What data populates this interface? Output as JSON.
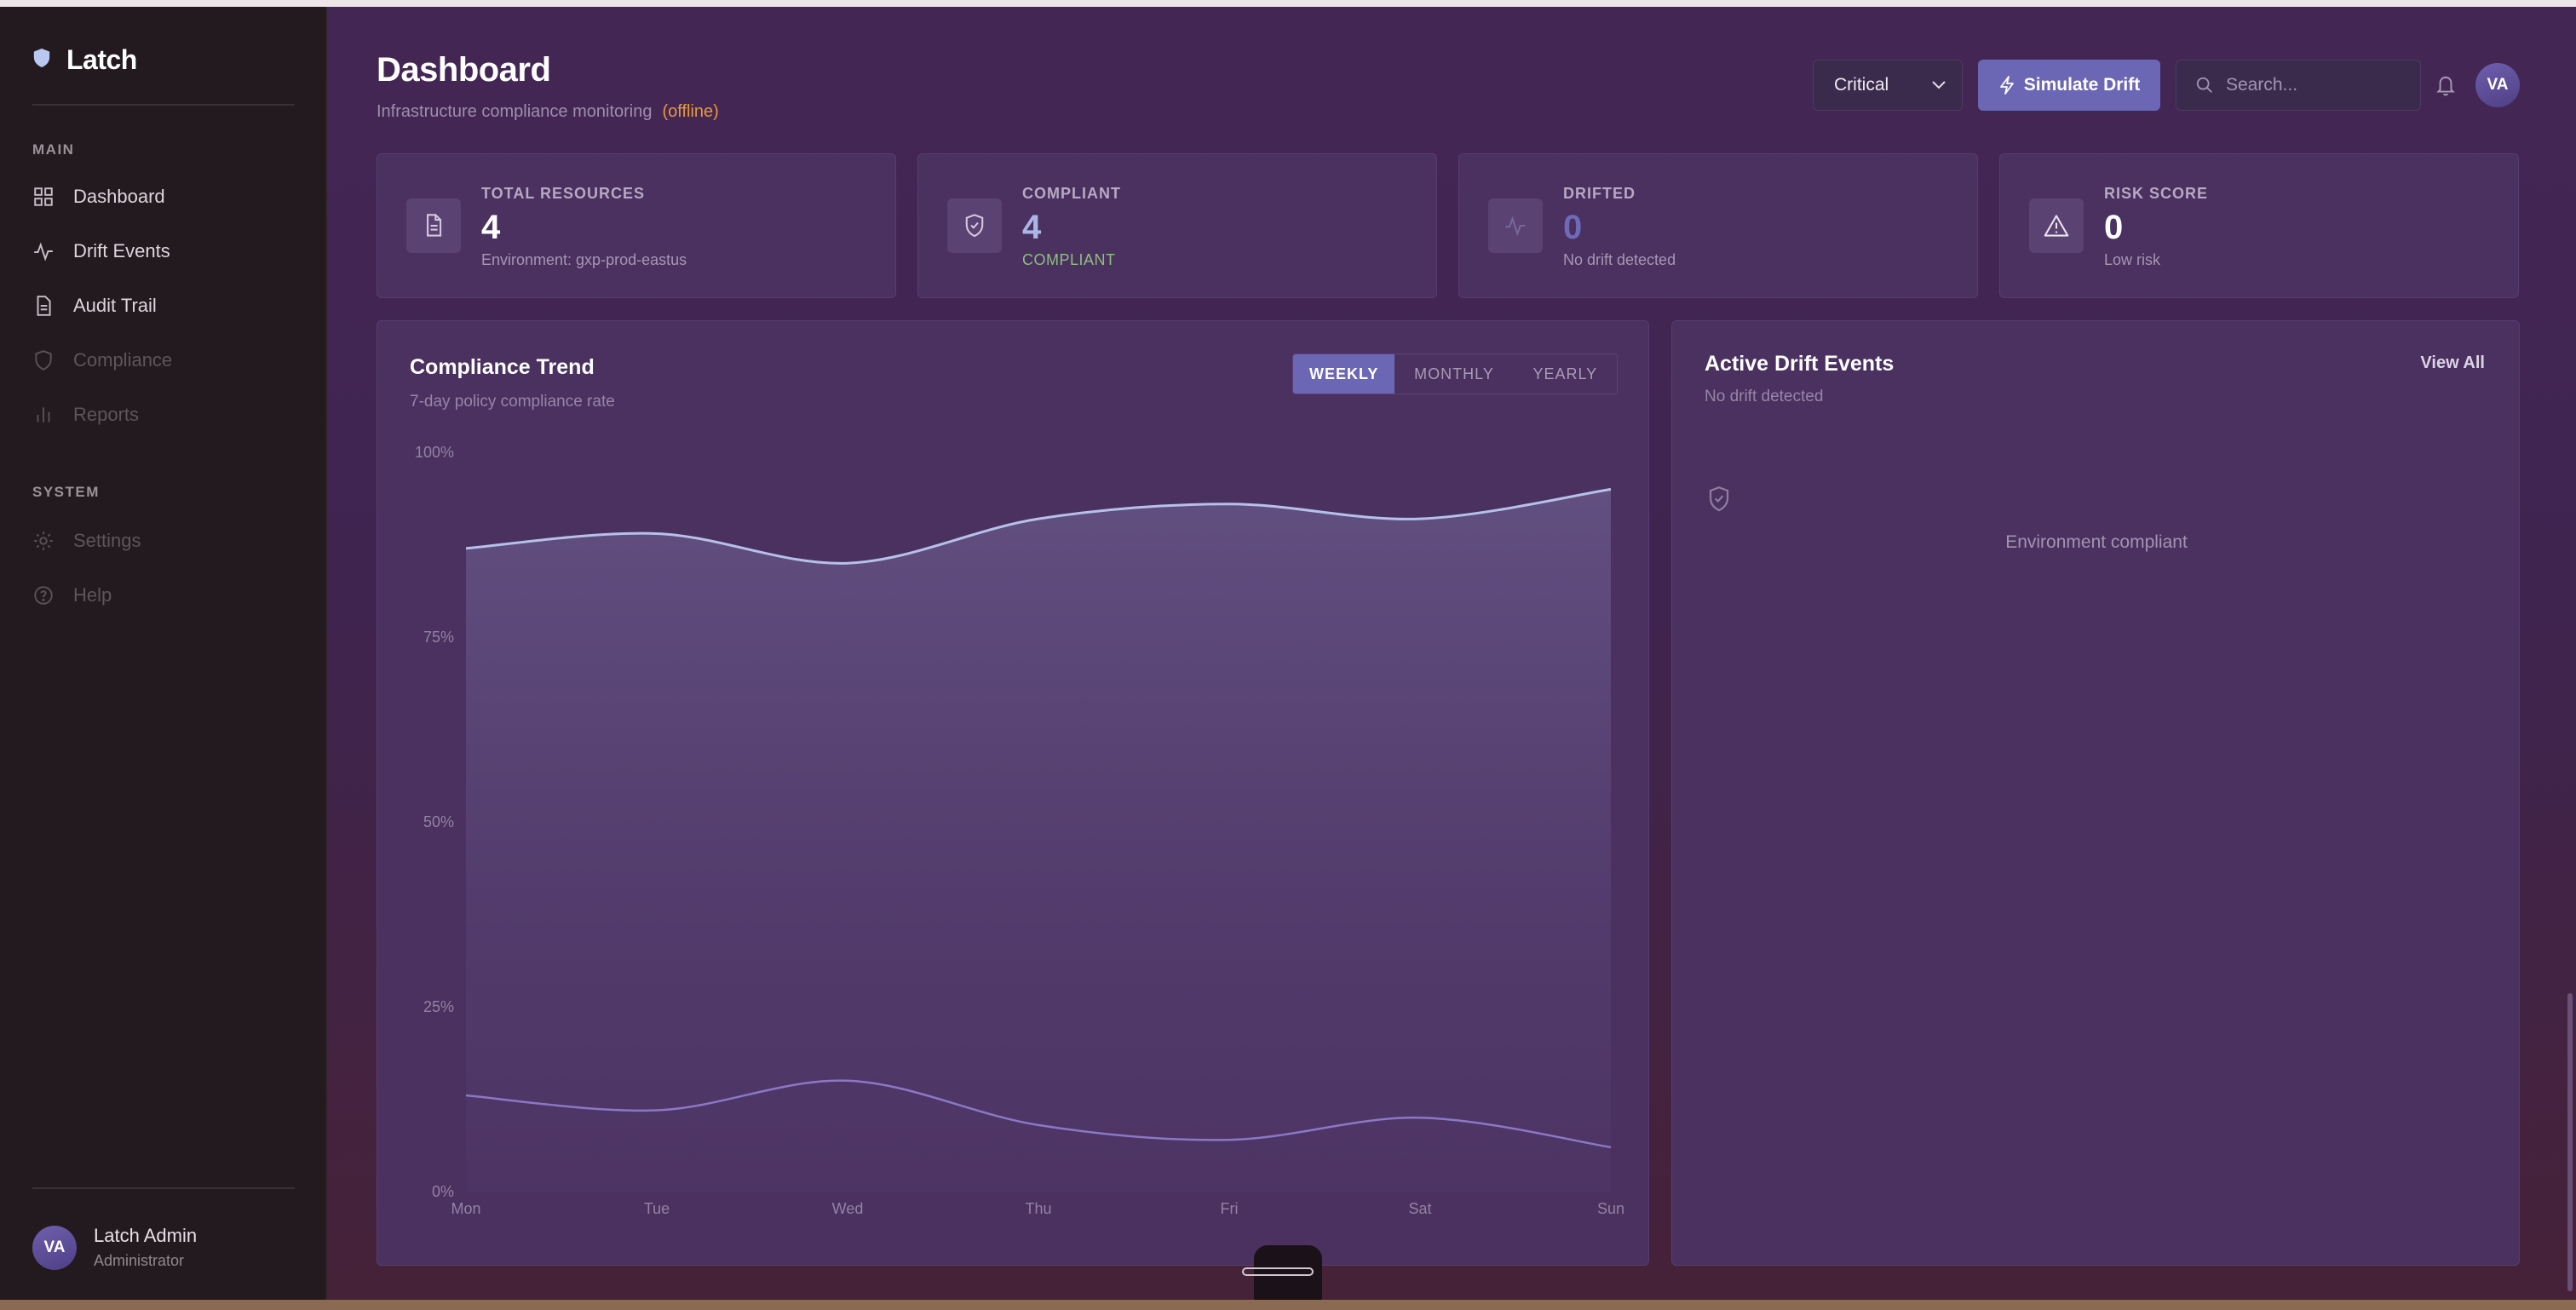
{
  "app": {
    "name": "Latch"
  },
  "sidebar": {
    "sections": [
      {
        "label": "MAIN"
      },
      {
        "label": "SYSTEM"
      }
    ],
    "items": [
      {
        "label": "Dashboard",
        "icon": "grid-icon"
      },
      {
        "label": "Drift Events",
        "icon": "activity-icon"
      },
      {
        "label": "Audit Trail",
        "icon": "file-icon"
      },
      {
        "label": "Compliance",
        "icon": "shield-icon"
      },
      {
        "label": "Reports",
        "icon": "bar-chart-icon"
      },
      {
        "label": "Settings",
        "icon": "gear-icon"
      },
      {
        "label": "Help",
        "icon": "help-circle-icon"
      }
    ],
    "user": {
      "initials": "VA",
      "name": "Latch Admin",
      "role": "Administrator"
    }
  },
  "header": {
    "title": "Dashboard",
    "subtitle": "Infrastructure compliance monitoring",
    "status": "(offline)",
    "severity": "Critical",
    "simulate_label": "Simulate Drift",
    "search_placeholder": "Search...",
    "avatar": "VA"
  },
  "stats": [
    {
      "label": "TOTAL RESOURCES",
      "value": "4",
      "sub": "Environment: gxp-prod-eastus",
      "icon": "document-icon"
    },
    {
      "label": "COMPLIANT",
      "value": "4",
      "sub": "COMPLIANT",
      "icon": "shield-check-icon"
    },
    {
      "label": "DRIFTED",
      "value": "0",
      "sub": "No drift detected",
      "icon": "activity-icon"
    },
    {
      "label": "RISK SCORE",
      "value": "0",
      "sub": "Low risk",
      "icon": "warning-icon"
    }
  ],
  "trend": {
    "title": "Compliance Trend",
    "subtitle": "7-day policy compliance rate",
    "tabs": [
      {
        "label": "WEEKLY",
        "active": true
      },
      {
        "label": "MONTHLY",
        "active": false
      },
      {
        "label": "YEARLY",
        "active": false
      }
    ]
  },
  "drift": {
    "title": "Active Drift Events",
    "subtitle": "No drift detected",
    "view_all": "View All",
    "empty": "Environment compliant"
  },
  "colors": {
    "accent": "#6c67b5",
    "offline": "#e59a3c",
    "compliant": "#8fbe7f",
    "line_upper": "#b6c1ea",
    "line_lower": "#8a78c4"
  },
  "chart_data": {
    "type": "area",
    "categories": [
      "Mon",
      "Tue",
      "Wed",
      "Thu",
      "Fri",
      "Sat",
      "Sun"
    ],
    "y_ticks": [
      "100%",
      "75%",
      "50%",
      "25%",
      "0%"
    ],
    "ylim": [
      0,
      100
    ],
    "series": [
      {
        "values": [
          87,
          89,
          85,
          91,
          93,
          91,
          95
        ]
      },
      {
        "values": [
          13,
          11,
          15,
          9,
          7,
          10,
          6
        ]
      }
    ],
    "grid": false,
    "legend": "none"
  }
}
